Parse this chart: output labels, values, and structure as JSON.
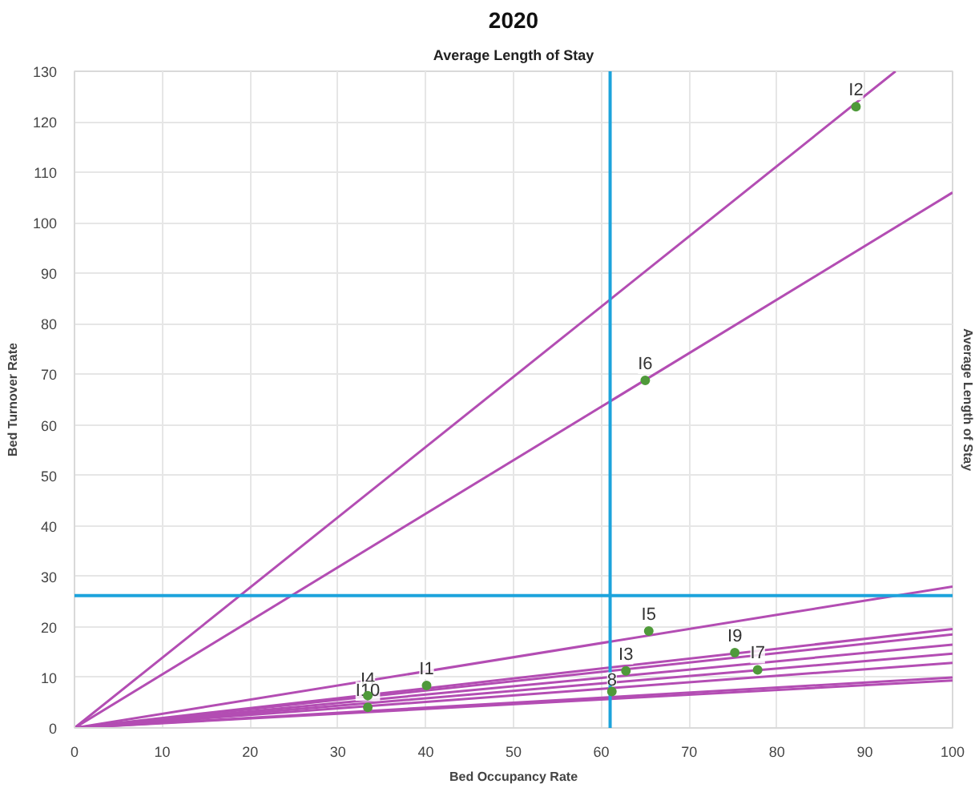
{
  "chart_data": {
    "type": "line",
    "title": "2020",
    "subtitle": "Average Length of Stay",
    "xlabel": "Bed Occupancy Rate",
    "ylabel": "Bed Turnover Rate",
    "y2label": "Average Length of Stay",
    "xlim": [
      0,
      100
    ],
    "ylim": [
      0,
      130
    ],
    "xticks": [
      0,
      10,
      20,
      30,
      40,
      50,
      60,
      70,
      80,
      90,
      100
    ],
    "yticks": [
      0,
      10,
      20,
      30,
      40,
      50,
      60,
      70,
      80,
      90,
      100,
      110,
      120,
      130
    ],
    "grid": true,
    "series": [
      {
        "color": "#b34db3",
        "x": [
          0,
          93.5
        ],
        "values": [
          0,
          130
        ]
      },
      {
        "color": "#b34db3",
        "x": [
          0,
          100
        ],
        "values": [
          0,
          106
        ]
      },
      {
        "color": "#b34db3",
        "x": [
          0,
          100
        ],
        "values": [
          0,
          28
        ]
      },
      {
        "color": "#b34db3",
        "x": [
          0,
          100
        ],
        "values": [
          0,
          19.6
        ]
      },
      {
        "color": "#b34db3",
        "x": [
          0,
          100
        ],
        "values": [
          0,
          18.5
        ]
      },
      {
        "color": "#b34db3",
        "x": [
          0,
          100
        ],
        "values": [
          0,
          16.5
        ]
      },
      {
        "color": "#b34db3",
        "x": [
          0,
          100
        ],
        "values": [
          0,
          14.7
        ]
      },
      {
        "color": "#b34db3",
        "x": [
          0,
          100
        ],
        "values": [
          0,
          12.9
        ]
      },
      {
        "color": "#b34db3",
        "x": [
          0,
          100
        ],
        "values": [
          0,
          10.0
        ]
      },
      {
        "color": "#b34db3",
        "x": [
          0,
          100
        ],
        "values": [
          0,
          9.4
        ]
      },
      {
        "type": "scatter",
        "marker": "circle",
        "color": "#4f9a3a",
        "x": [
          40.1,
          89,
          62.8,
          33.4,
          65.4,
          65,
          77.8,
          61.2,
          75.2,
          33.4
        ],
        "values": [
          8.4,
          123,
          11.3,
          6.4,
          19.2,
          68.8,
          11.5,
          7.2,
          14.9,
          4.1
        ]
      }
    ],
    "ref_lines": [
      {
        "axis": "x",
        "value": 61,
        "color": "#1ca3dc"
      },
      {
        "axis": "y",
        "value": 26.2,
        "color": "#1ca3dc"
      }
    ],
    "annotations": [
      {
        "text": "I1",
        "x": 40.1,
        "y": 8.4
      },
      {
        "text": "I2",
        "x": 89,
        "y": 123
      },
      {
        "text": "I3",
        "x": 62.8,
        "y": 11.3
      },
      {
        "text": "I4",
        "x": 33.4,
        "y": 6.4
      },
      {
        "text": "I5",
        "x": 65.4,
        "y": 19.2
      },
      {
        "text": "I6",
        "x": 65,
        "y": 68.8
      },
      {
        "text": "I7",
        "x": 77.8,
        "y": 11.5
      },
      {
        "text": "8",
        "x": 61.2,
        "y": 7.2
      },
      {
        "text": "I9",
        "x": 75.2,
        "y": 14.9
      },
      {
        "text": "I10",
        "x": 33.4,
        "y": 4.1
      }
    ]
  }
}
